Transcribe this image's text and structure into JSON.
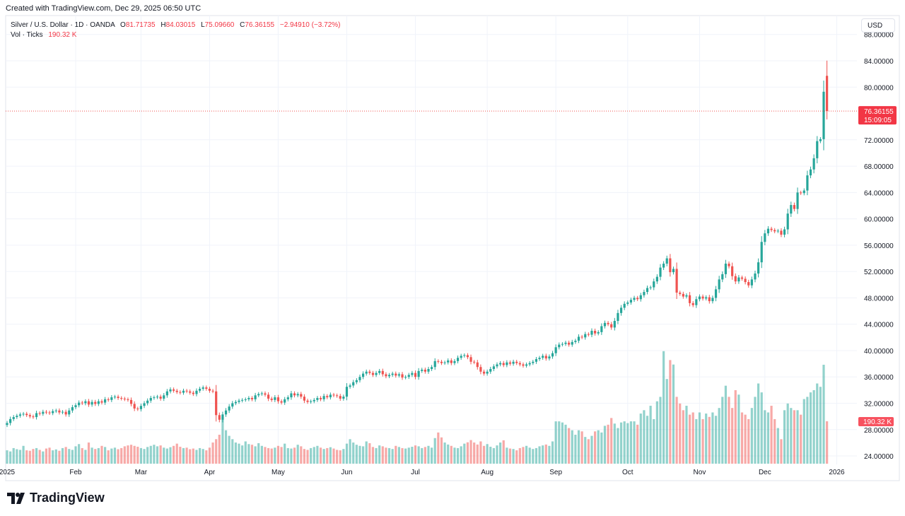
{
  "created_text": "Created with TradingView.com, Dec 29, 2025 06:50 UTC",
  "legend": {
    "symbol": "Silver / U.S. Dollar · 1D · OANDA",
    "o_label": "O",
    "o": "81.71735",
    "h_label": "H",
    "h": "84.03015",
    "l_label": "L",
    "l": "75.09660",
    "c_label": "C",
    "c": "76.36155",
    "change": "−2.94910 (−3.72%)",
    "vol_label": "Vol · Ticks",
    "vol": "190.32 K"
  },
  "currency_button": "USD",
  "last_price_label": "76.36155",
  "countdown_label": "15:09:05",
  "volume_label": "190.32 K",
  "logo_text": "TradingView",
  "colors": {
    "up": "#26a69a",
    "down": "#ef5350",
    "grid": "#f0f3fa"
  },
  "chart_data": {
    "type": "candlestick",
    "ylim": [
      22,
      88
    ],
    "y_ticks": [
      "24.00000",
      "28.00000",
      "32.00000",
      "36.00000",
      "40.00000",
      "44.00000",
      "48.00000",
      "52.00000",
      "56.00000",
      "60.00000",
      "64.00000",
      "68.00000",
      "72.00000",
      "80.00000",
      "84.00000",
      "88.00000"
    ],
    "x_ticks": [
      {
        "label": "2025",
        "index": 0
      },
      {
        "label": "Feb",
        "index": 21
      },
      {
        "label": "Mar",
        "index": 41
      },
      {
        "label": "Apr",
        "index": 62
      },
      {
        "label": "May",
        "index": 83
      },
      {
        "label": "Jun",
        "index": 104
      },
      {
        "label": "Jul",
        "index": 125
      },
      {
        "label": "Aug",
        "index": 147
      },
      {
        "label": "Sep",
        "index": 168
      },
      {
        "label": "Oct",
        "index": 190
      },
      {
        "label": "Nov",
        "index": 212
      },
      {
        "label": "Dec",
        "index": 232
      },
      {
        "label": "2026",
        "index": 254
      }
    ],
    "grid": true,
    "last_candle": {
      "open": 81.71735,
      "high": 84.03015,
      "low": 75.0966,
      "close": 76.36155
    },
    "closes": [
      29.0,
      29.6,
      29.9,
      30.1,
      30.3,
      30.4,
      30.2,
      30.0,
      29.9,
      30.5,
      30.4,
      30.7,
      30.6,
      30.5,
      30.8,
      30.9,
      30.6,
      30.7,
      30.3,
      30.9,
      31.4,
      31.7,
      32.1,
      32.0,
      32.3,
      31.8,
      32.2,
      31.9,
      32.3,
      32.1,
      32.6,
      32.5,
      32.9,
      33.0,
      32.8,
      32.7,
      32.6,
      32.5,
      31.9,
      31.2,
      31.1,
      31.6,
      32.0,
      32.4,
      32.8,
      32.9,
      33.0,
      32.7,
      33.2,
      33.8,
      34.1,
      33.9,
      33.7,
      33.6,
      33.9,
      33.8,
      33.6,
      33.4,
      33.9,
      34.2,
      34.4,
      34.2,
      33.9,
      33.8,
      30.2,
      29.5,
      30.3,
      30.9,
      31.5,
      32.0,
      32.2,
      32.4,
      32.5,
      32.6,
      32.8,
      32.6,
      33.2,
      33.4,
      33.5,
      33.3,
      32.7,
      32.5,
      32.9,
      32.3,
      32.1,
      32.6,
      32.9,
      33.5,
      33.2,
      33.4,
      33.0,
      32.4,
      32.2,
      32.3,
      32.5,
      32.8,
      32.6,
      33.1,
      32.9,
      33.3,
      33.2,
      33.1,
      32.7,
      33.0,
      34.5,
      34.7,
      35.2,
      35.5,
      36.0,
      36.5,
      36.8,
      36.6,
      36.3,
      36.6,
      36.9,
      36.4,
      36.1,
      36.3,
      36.5,
      36.2,
      36.4,
      35.9,
      36.0,
      36.3,
      36.6,
      36.0,
      36.9,
      37.1,
      36.8,
      37.2,
      37.5,
      38.4,
      38.3,
      38.1,
      38.2,
      38.5,
      38.1,
      38.4,
      38.9,
      39.2,
      39.3,
      39.0,
      38.3,
      38.2,
      37.5,
      36.8,
      36.5,
      36.8,
      37.2,
      37.6,
      37.9,
      38.1,
      37.8,
      38.2,
      38.0,
      38.3,
      38.1,
      37.9,
      37.7,
      37.9,
      38.1,
      38.3,
      38.7,
      38.9,
      39.2,
      38.8,
      39.1,
      39.6,
      40.5,
      40.9,
      41.0,
      41.2,
      40.9,
      41.3,
      41.5,
      42.1,
      42.0,
      42.5,
      42.4,
      43.0,
      42.6,
      42.8,
      43.7,
      44.2,
      44.0,
      43.5,
      44.5,
      45.7,
      46.5,
      47.1,
      47.3,
      47.7,
      48.0,
      47.8,
      48.4,
      48.9,
      49.5,
      49.6,
      50.5,
      51.2,
      52.6,
      53.2,
      54.0,
      51.9,
      52.4,
      48.8,
      48.6,
      48.2,
      48.4,
      47.2,
      46.9,
      47.8,
      48.2,
      47.9,
      48.1,
      47.5,
      48.0,
      49.3,
      50.8,
      51.6,
      53.2,
      52.8,
      51.3,
      50.5,
      51.1,
      50.9,
      50.4,
      49.9,
      50.8,
      51.7,
      53.4,
      56.5,
      57.8,
      58.5,
      58.3,
      58.1,
      58.2,
      57.6,
      58.4,
      60.8,
      62.1,
      61.5,
      64.0,
      63.9,
      64.3,
      66.6,
      67.5,
      69.2,
      71.8,
      72.1,
      79.3,
      76.36155
    ],
    "volume_k": [
      60,
      55,
      70,
      65,
      62,
      80,
      60,
      58,
      66,
      70,
      62,
      55,
      68,
      72,
      60,
      64,
      58,
      70,
      75,
      66,
      62,
      78,
      88,
      70,
      62,
      95,
      72,
      66,
      70,
      80,
      75,
      60,
      68,
      72,
      65,
      70,
      78,
      82,
      85,
      80,
      76,
      70,
      66,
      75,
      80,
      85,
      78,
      82,
      72,
      68,
      74,
      80,
      90,
      76,
      70,
      72,
      65,
      68,
      62,
      70,
      66,
      60,
      72,
      95,
      110,
      130,
      210,
      150,
      125,
      110,
      95,
      90,
      82,
      100,
      88,
      85,
      78,
      92,
      80,
      75,
      70,
      68,
      72,
      80,
      75,
      90,
      70,
      68,
      72,
      85,
      78,
      66,
      62,
      70,
      75,
      80,
      72,
      66,
      70,
      74,
      68,
      62,
      60,
      66,
      90,
      110,
      95,
      85,
      80,
      78,
      100,
      92,
      75,
      70,
      82,
      78,
      72,
      70,
      66,
      80,
      75,
      70,
      68,
      72,
      76,
      82,
      78,
      70,
      75,
      80,
      72,
      115,
      140,
      118,
      95,
      86,
      80,
      72,
      70,
      78,
      90,
      96,
      106,
      95,
      86,
      100,
      80,
      88,
      76,
      70,
      82,
      95,
      105,
      72,
      68,
      66,
      60,
      70,
      75,
      80,
      72,
      66,
      70,
      78,
      82,
      86,
      80,
      100,
      190,
      190,
      185,
      175,
      160,
      150,
      130,
      150,
      145,
      120,
      110,
      125,
      145,
      150,
      140,
      170,
      175,
      205,
      180,
      160,
      185,
      190,
      182,
      190,
      190,
      175,
      225,
      240,
      215,
      260,
      200,
      280,
      300,
      505,
      380,
      465,
      445,
      300,
      270,
      240,
      260,
      220,
      230,
      200,
      230,
      200,
      225,
      210,
      230,
      215,
      250,
      300,
      350,
      300,
      250,
      330,
      310,
      230,
      220,
      200,
      250,
      300,
      360,
      320,
      240,
      230,
      260,
      200,
      160,
      110,
      240,
      270,
      250,
      240,
      240,
      220,
      290,
      300,
      320,
      330,
      360,
      345,
      444,
      190.32
    ]
  }
}
